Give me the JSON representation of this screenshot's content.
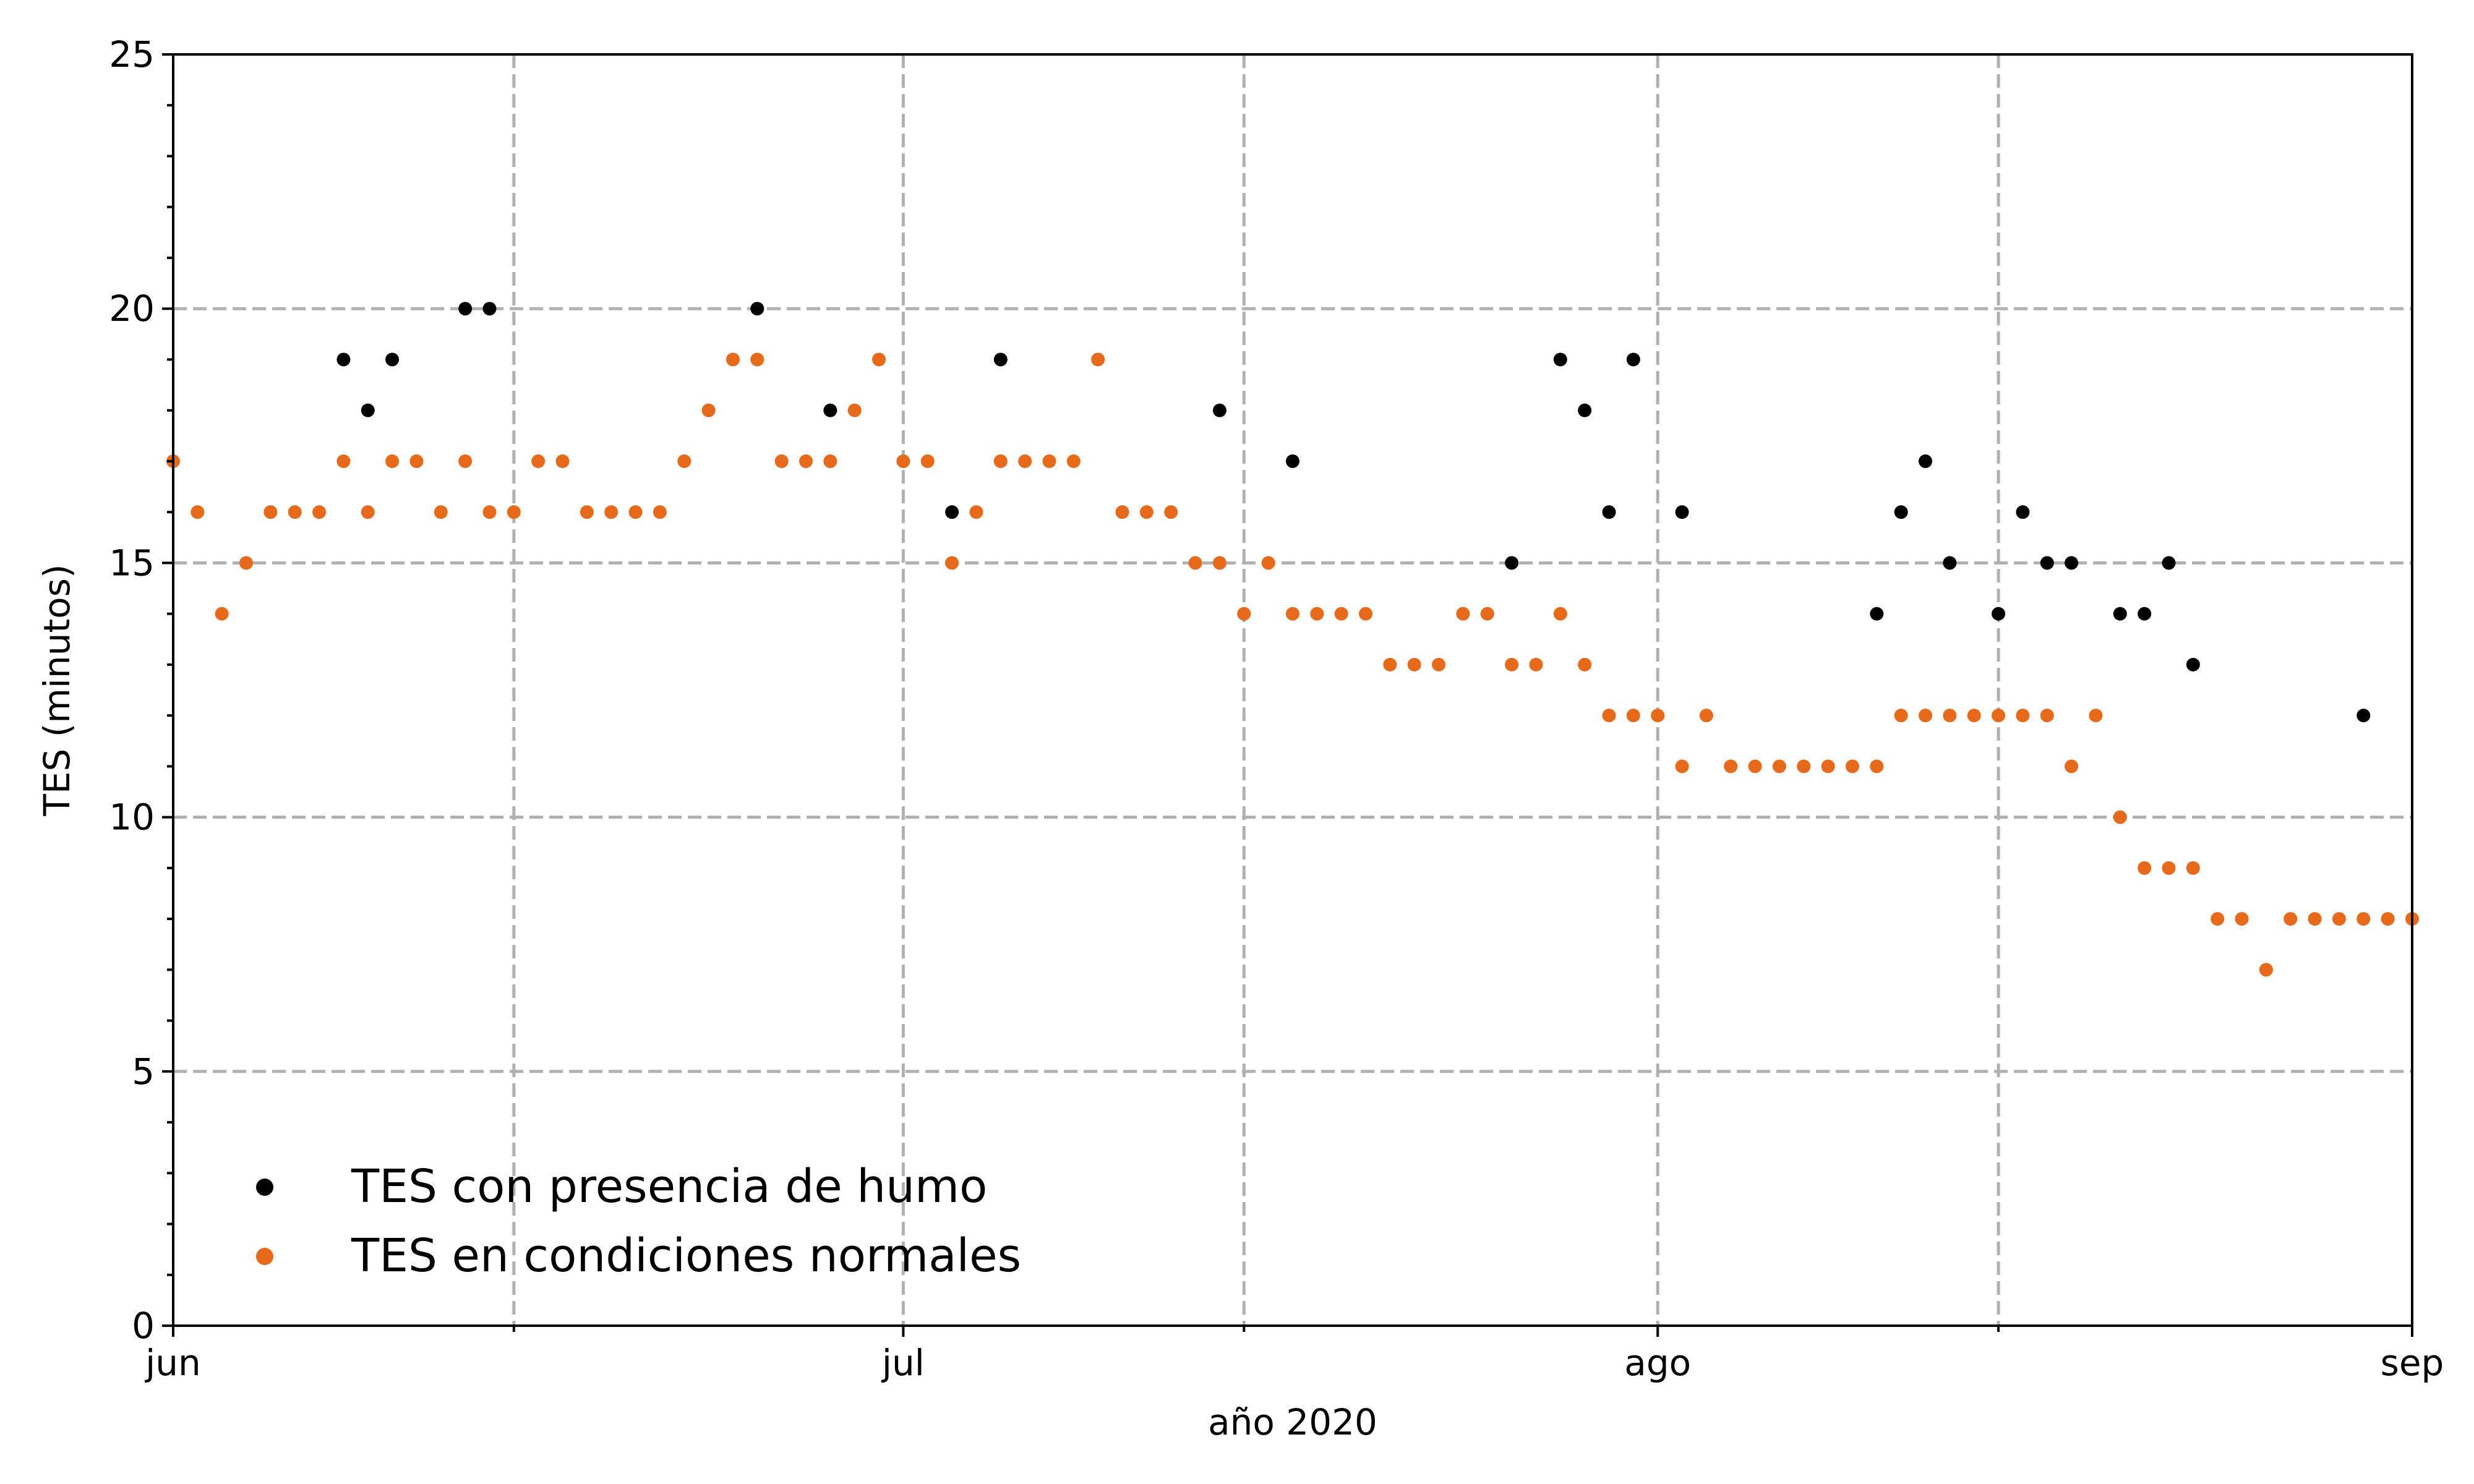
{
  "chart_data": {
    "type": "scatter",
    "xlabel": "año 2020",
    "ylabel": "TES (minutos)",
    "x_range": [
      "2020-06-01",
      "2020-09-01"
    ],
    "ylim": [
      0,
      25
    ],
    "y_ticks": [
      0,
      5,
      10,
      15,
      20,
      25
    ],
    "y_minor_step": 1,
    "x_ticks": [
      {
        "date": "2020-06-01",
        "label": "jun"
      },
      {
        "date": "2020-07-01",
        "label": "jul"
      },
      {
        "date": "2020-08-01",
        "label": "ago"
      },
      {
        "date": "2020-09-01",
        "label": "sep"
      }
    ],
    "x_minor_ticks": [
      "2020-06-15",
      "2020-07-15",
      "2020-08-15"
    ],
    "grid": true,
    "legend_position": "lower-left",
    "series": [
      {
        "name": "TES con presencia de humo",
        "color": "#000000",
        "points": [
          [
            "2020-06-08",
            19
          ],
          [
            "2020-06-09",
            18
          ],
          [
            "2020-06-10",
            19
          ],
          [
            "2020-06-13",
            20
          ],
          [
            "2020-06-14",
            20
          ],
          [
            "2020-06-25",
            20
          ],
          [
            "2020-06-28",
            18
          ],
          [
            "2020-07-03",
            16
          ],
          [
            "2020-07-05",
            19
          ],
          [
            "2020-07-14",
            18
          ],
          [
            "2020-07-17",
            17
          ],
          [
            "2020-07-26",
            15
          ],
          [
            "2020-07-28",
            19
          ],
          [
            "2020-07-29",
            18
          ],
          [
            "2020-07-30",
            16
          ],
          [
            "2020-07-31",
            19
          ],
          [
            "2020-08-02",
            16
          ],
          [
            "2020-08-10",
            14
          ],
          [
            "2020-08-11",
            16
          ],
          [
            "2020-08-12",
            17
          ],
          [
            "2020-08-13",
            15
          ],
          [
            "2020-08-15",
            14
          ],
          [
            "2020-08-16",
            16
          ],
          [
            "2020-08-17",
            15
          ],
          [
            "2020-08-18",
            15
          ],
          [
            "2020-08-20",
            14
          ],
          [
            "2020-08-21",
            14
          ],
          [
            "2020-08-22",
            15
          ],
          [
            "2020-08-23",
            13
          ],
          [
            "2020-08-30",
            12
          ]
        ]
      },
      {
        "name": "TES en condiciones normales",
        "color": "#e66a1a",
        "points": [
          [
            "2020-06-01",
            17
          ],
          [
            "2020-06-02",
            16
          ],
          [
            "2020-06-03",
            14
          ],
          [
            "2020-06-04",
            15
          ],
          [
            "2020-06-05",
            16
          ],
          [
            "2020-06-06",
            16
          ],
          [
            "2020-06-07",
            16
          ],
          [
            "2020-06-08",
            17
          ],
          [
            "2020-06-09",
            16
          ],
          [
            "2020-06-10",
            17
          ],
          [
            "2020-06-11",
            17
          ],
          [
            "2020-06-12",
            16
          ],
          [
            "2020-06-13",
            17
          ],
          [
            "2020-06-14",
            16
          ],
          [
            "2020-06-15",
            16
          ],
          [
            "2020-06-16",
            17
          ],
          [
            "2020-06-17",
            17
          ],
          [
            "2020-06-18",
            16
          ],
          [
            "2020-06-19",
            16
          ],
          [
            "2020-06-20",
            16
          ],
          [
            "2020-06-21",
            16
          ],
          [
            "2020-06-22",
            17
          ],
          [
            "2020-06-23",
            18
          ],
          [
            "2020-06-24",
            19
          ],
          [
            "2020-06-25",
            19
          ],
          [
            "2020-06-26",
            17
          ],
          [
            "2020-06-27",
            17
          ],
          [
            "2020-06-28",
            17
          ],
          [
            "2020-06-29",
            18
          ],
          [
            "2020-06-30",
            19
          ],
          [
            "2020-07-01",
            17
          ],
          [
            "2020-07-02",
            17
          ],
          [
            "2020-07-03",
            15
          ],
          [
            "2020-07-04",
            16
          ],
          [
            "2020-07-05",
            17
          ],
          [
            "2020-07-06",
            17
          ],
          [
            "2020-07-07",
            17
          ],
          [
            "2020-07-08",
            17
          ],
          [
            "2020-07-09",
            19
          ],
          [
            "2020-07-10",
            16
          ],
          [
            "2020-07-11",
            16
          ],
          [
            "2020-07-12",
            16
          ],
          [
            "2020-07-13",
            15
          ],
          [
            "2020-07-14",
            15
          ],
          [
            "2020-07-15",
            14
          ],
          [
            "2020-07-16",
            15
          ],
          [
            "2020-07-17",
            14
          ],
          [
            "2020-07-18",
            14
          ],
          [
            "2020-07-19",
            14
          ],
          [
            "2020-07-20",
            14
          ],
          [
            "2020-07-21",
            13
          ],
          [
            "2020-07-22",
            13
          ],
          [
            "2020-07-23",
            13
          ],
          [
            "2020-07-24",
            14
          ],
          [
            "2020-07-25",
            14
          ],
          [
            "2020-07-26",
            13
          ],
          [
            "2020-07-27",
            13
          ],
          [
            "2020-07-28",
            14
          ],
          [
            "2020-07-29",
            13
          ],
          [
            "2020-07-30",
            12
          ],
          [
            "2020-07-31",
            12
          ],
          [
            "2020-08-01",
            12
          ],
          [
            "2020-08-02",
            11
          ],
          [
            "2020-08-03",
            12
          ],
          [
            "2020-08-04",
            11
          ],
          [
            "2020-08-05",
            11
          ],
          [
            "2020-08-06",
            11
          ],
          [
            "2020-08-07",
            11
          ],
          [
            "2020-08-08",
            11
          ],
          [
            "2020-08-09",
            11
          ],
          [
            "2020-08-10",
            11
          ],
          [
            "2020-08-11",
            12
          ],
          [
            "2020-08-12",
            12
          ],
          [
            "2020-08-13",
            12
          ],
          [
            "2020-08-14",
            12
          ],
          [
            "2020-08-15",
            12
          ],
          [
            "2020-08-16",
            12
          ],
          [
            "2020-08-17",
            12
          ],
          [
            "2020-08-18",
            11
          ],
          [
            "2020-08-19",
            12
          ],
          [
            "2020-08-20",
            10
          ],
          [
            "2020-08-21",
            9
          ],
          [
            "2020-08-22",
            9
          ],
          [
            "2020-08-23",
            9
          ],
          [
            "2020-08-24",
            8
          ],
          [
            "2020-08-25",
            8
          ],
          [
            "2020-08-26",
            7
          ],
          [
            "2020-08-27",
            8
          ],
          [
            "2020-08-28",
            8
          ],
          [
            "2020-08-29",
            8
          ],
          [
            "2020-08-30",
            8
          ],
          [
            "2020-08-31",
            8
          ],
          [
            "2020-09-01",
            8
          ]
        ]
      }
    ]
  }
}
